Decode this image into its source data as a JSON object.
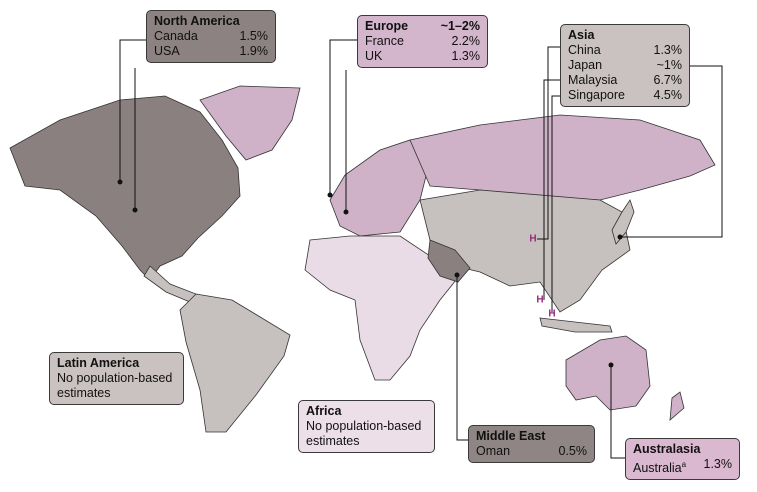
{
  "callouts": {
    "north_america": {
      "title": "North America",
      "rows": [
        {
          "label": "Canada",
          "value": "1.5%"
        },
        {
          "label": "USA",
          "value": "1.9%"
        }
      ]
    },
    "europe": {
      "title": "Europe",
      "title_value": "~1–2%",
      "rows": [
        {
          "label": "France",
          "value": "2.2%"
        },
        {
          "label": "UK",
          "value": "1.3%"
        }
      ]
    },
    "asia": {
      "title": "Asia",
      "rows": [
        {
          "label": "China",
          "value": "1.3%"
        },
        {
          "label": "Japan",
          "value": "~1%"
        },
        {
          "label": "Malaysia",
          "value": "6.7%"
        },
        {
          "label": "Singapore",
          "value": "4.5%"
        }
      ]
    },
    "latin_america": {
      "title": "Latin America",
      "text": "No population-based estimates"
    },
    "africa": {
      "title": "Africa",
      "text": "No population-based estimates"
    },
    "middle_east": {
      "title": "Middle East",
      "rows": [
        {
          "label": "Oman",
          "value": "0.5%"
        }
      ]
    },
    "australasia": {
      "title": "Australasia",
      "rows": [
        {
          "label": "Australia",
          "footnote": "a",
          "value": "1.3%"
        }
      ]
    }
  },
  "map_markers": [
    "H",
    "H",
    "H"
  ]
}
